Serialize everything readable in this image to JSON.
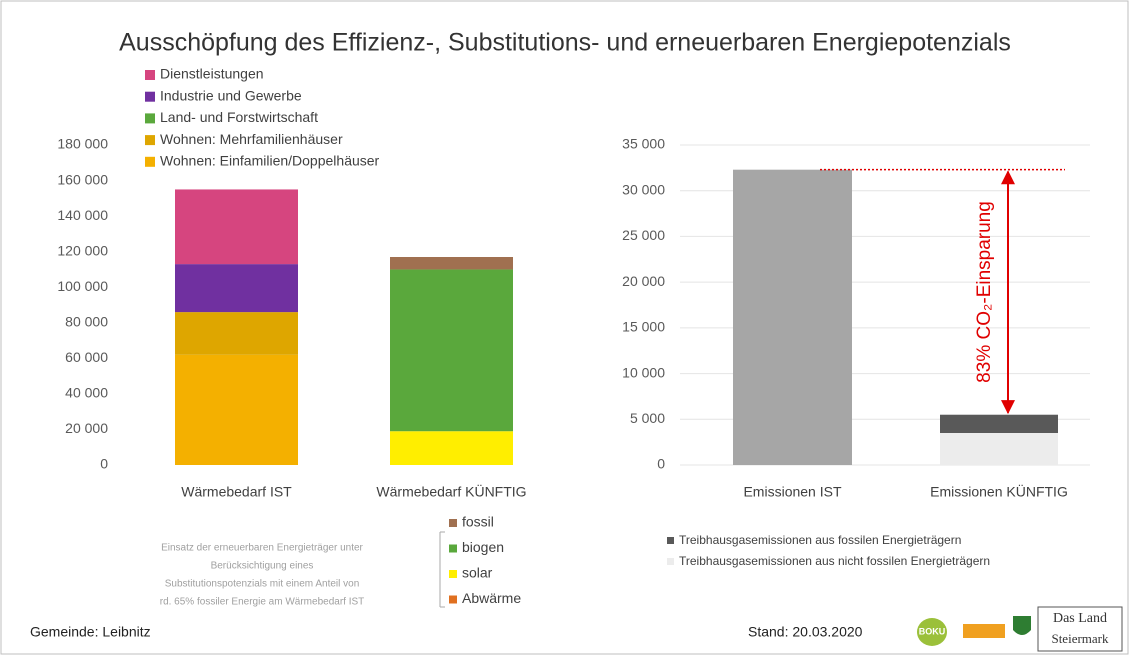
{
  "title": "Ausschöpfung des Effizienz-, Substitutions- und erneuerbaren Energiepotenzials",
  "footer": {
    "left": "Gemeinde: Leibnitz",
    "date": "Stand: 20.03.2020",
    "logo1": "BOKU",
    "logo2": "Das Land",
    "logo3": "Steiermark"
  },
  "chart_data": [
    {
      "type": "stacked_bar",
      "categories": [
        "Wärmebedarf IST",
        "Wärmebedarf KÜNFTIG"
      ],
      "ylim": [
        0,
        180000
      ],
      "yticks": [
        0,
        {
          "value": 20000,
          "label": "20 000"
        },
        {
          "value": 40000,
          "label": "40 000"
        },
        {
          "value": 60000,
          "label": "60 000"
        },
        {
          "value": 80000,
          "label": "80 000"
        },
        {
          "value": 100000,
          "label": "100 000"
        },
        {
          "value": 120000,
          "label": "120 000"
        },
        {
          "value": 140000,
          "label": "140 000"
        },
        {
          "value": 160000,
          "label": "160 000"
        },
        {
          "value": 180000,
          "label": "180 000"
        }
      ],
      "grid": false,
      "series": [
        {
          "name": "Wohnen: Einfamilien/Doppelhäuser",
          "color": "#f4b000",
          "values": [
            62000,
            null
          ],
          "legend": "top"
        },
        {
          "name": "Wohnen: Mehrfamilienhäuser",
          "color": "#dea600",
          "values": [
            24000,
            null
          ],
          "legend": "top"
        },
        {
          "name": "Land- und Forstwirtschaft",
          "color": "#5aa83c",
          "values": [
            0,
            null
          ],
          "legend": "top"
        },
        {
          "name": "Industrie und Gewerbe",
          "color": "#7030a0",
          "values": [
            27000,
            null
          ],
          "legend": "top"
        },
        {
          "name": "Dienstleistungen",
          "color": "#d6457f",
          "values": [
            42000,
            null
          ],
          "legend": "top"
        },
        {
          "name": "Abwärme",
          "color": "#e07020",
          "values": [
            null,
            0
          ],
          "legend": "bottom"
        },
        {
          "name": "solar",
          "color": "#ffee00",
          "values": [
            null,
            19000
          ],
          "legend": "bottom"
        },
        {
          "name": "biogen",
          "color": "#5aa83c",
          "values": [
            null,
            91000
          ],
          "legend": "bottom"
        },
        {
          "name": "fossil",
          "color": "#a07050",
          "values": [
            null,
            7000
          ],
          "legend": "bottom"
        }
      ],
      "annotation": [
        "Einsatz der erneuerbaren Energieträger unter",
        "Berücksichtigung eines",
        "Substitutionspotenzials mit einem Anteil von",
        "rd. 65% fossiler Energie am Wärmebedarf IST"
      ]
    },
    {
      "type": "stacked_bar",
      "categories": [
        "Emissionen IST",
        "Emissionen KÜNFTIG"
      ],
      "ylim": [
        0,
        35000
      ],
      "yticks": [
        0,
        {
          "value": 5000,
          "label": "5 000"
        },
        {
          "value": 10000,
          "label": "10 000"
        },
        {
          "value": 15000,
          "label": "15 000"
        },
        {
          "value": 20000,
          "label": "20 000"
        },
        {
          "value": 25000,
          "label": "25 000"
        },
        {
          "value": 30000,
          "label": "30 000"
        },
        {
          "value": 35000,
          "label": "35 000"
        }
      ],
      "grid": true,
      "series": [
        {
          "name": "Treibhausgasemissionen aus nicht fossilen Energieträgern",
          "color": "#ececec",
          "values": [
            0,
            3500
          ]
        },
        {
          "name": "Treibhausgasemissionen aus fossilen Energieträgern",
          "color": "#595959",
          "colors": [
            "#a6a6a6",
            "#595959"
          ],
          "values": [
            32300,
            2000
          ]
        }
      ],
      "annotation": "83% CO₂-Einsparung"
    }
  ]
}
